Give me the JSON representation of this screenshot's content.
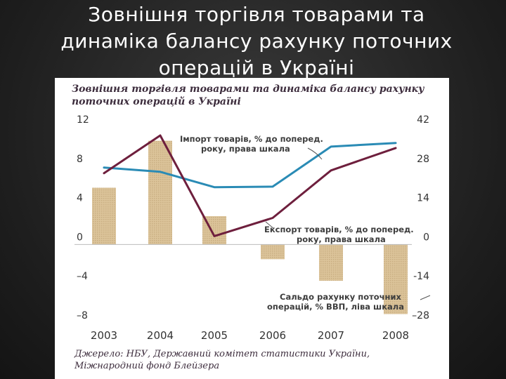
{
  "slide": {
    "title": "Зовнішня торгівля товарами та динаміка балансу рахунку поточних операцій в Україні"
  },
  "figure": {
    "title": "Зовнішня торгівля товарами та динаміка балансу рахунку поточних операцій в Україні",
    "source": "Джерело: НБУ, Державний комітет статистики України, Міжнародний фонд Блейзера"
  },
  "chart_data": {
    "type": "bar",
    "categories": [
      "2003",
      "2004",
      "2005",
      "2006",
      "2007",
      "2008"
    ],
    "ylim_left": [
      -8,
      12
    ],
    "yticks_left": [
      "12",
      "8",
      "4",
      "0",
      "–4",
      "–8"
    ],
    "ylim_right": [
      -28,
      42
    ],
    "yticks_right": [
      "42",
      "28",
      "14",
      "0",
      "-14",
      "–28"
    ],
    "grid": false,
    "series": [
      {
        "name": "Сальдо рахунку поточних операцій, % ВВП, ліва шкала",
        "type": "bar",
        "axis": "left",
        "values": [
          5.8,
          10.6,
          2.9,
          -1.5,
          -3.7,
          -7.1
        ],
        "color": "#dcc49a"
      },
      {
        "name": "Імпорт товарів, % до поперед. року, права шкала",
        "type": "line",
        "axis": "right",
        "values": [
          27.5,
          26.0,
          20.5,
          20.7,
          35.0,
          36.3
        ],
        "color": "#2a8bb5"
      },
      {
        "name": "Експорт товарів, % до поперед. року, права шкала",
        "type": "line",
        "axis": "right",
        "values": [
          25.5,
          39.0,
          3.0,
          9.5,
          26.5,
          34.5
        ],
        "color": "#6e1f3d"
      }
    ],
    "annotations": [
      [
        "Імпорт товарів, % до поперед.",
        "року, права шкала"
      ],
      [
        "Експорт товарів, % до поперед.",
        "року, права шкала"
      ],
      [
        "Сальдо рахунку поточних",
        "операцій, % ВВП, ліва шкала"
      ]
    ]
  }
}
